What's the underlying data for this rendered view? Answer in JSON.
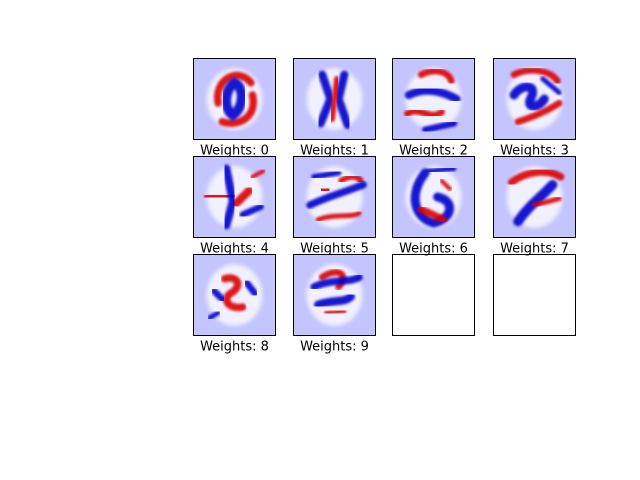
{
  "chart_data": {
    "type": "heatmap",
    "layout": {
      "rows": 3,
      "cols": 4
    },
    "colormap": "seismic",
    "colormap_colors": {
      "negative": "#0000cc",
      "zero": "#ffffff",
      "positive": "#dd0000",
      "background": "#c4c4ff"
    },
    "grid": false,
    "panels": [
      {
        "title": "Weights: 0",
        "digit": 0,
        "has_data": true
      },
      {
        "title": "Weights: 1",
        "digit": 1,
        "has_data": true
      },
      {
        "title": "Weights: 2",
        "digit": 2,
        "has_data": true
      },
      {
        "title": "Weights: 3",
        "digit": 3,
        "has_data": true
      },
      {
        "title": "Weights: 4",
        "digit": 4,
        "has_data": true
      },
      {
        "title": "Weights: 5",
        "digit": 5,
        "has_data": true
      },
      {
        "title": "Weights: 6",
        "digit": 6,
        "has_data": true
      },
      {
        "title": "Weights: 7",
        "digit": 7,
        "has_data": true
      },
      {
        "title": "Weights: 8",
        "digit": 8,
        "has_data": true
      },
      {
        "title": "Weights: 9",
        "digit": 9,
        "has_data": true
      },
      {
        "title": "",
        "digit": null,
        "has_data": false
      },
      {
        "title": "",
        "digit": null,
        "has_data": false
      }
    ]
  }
}
